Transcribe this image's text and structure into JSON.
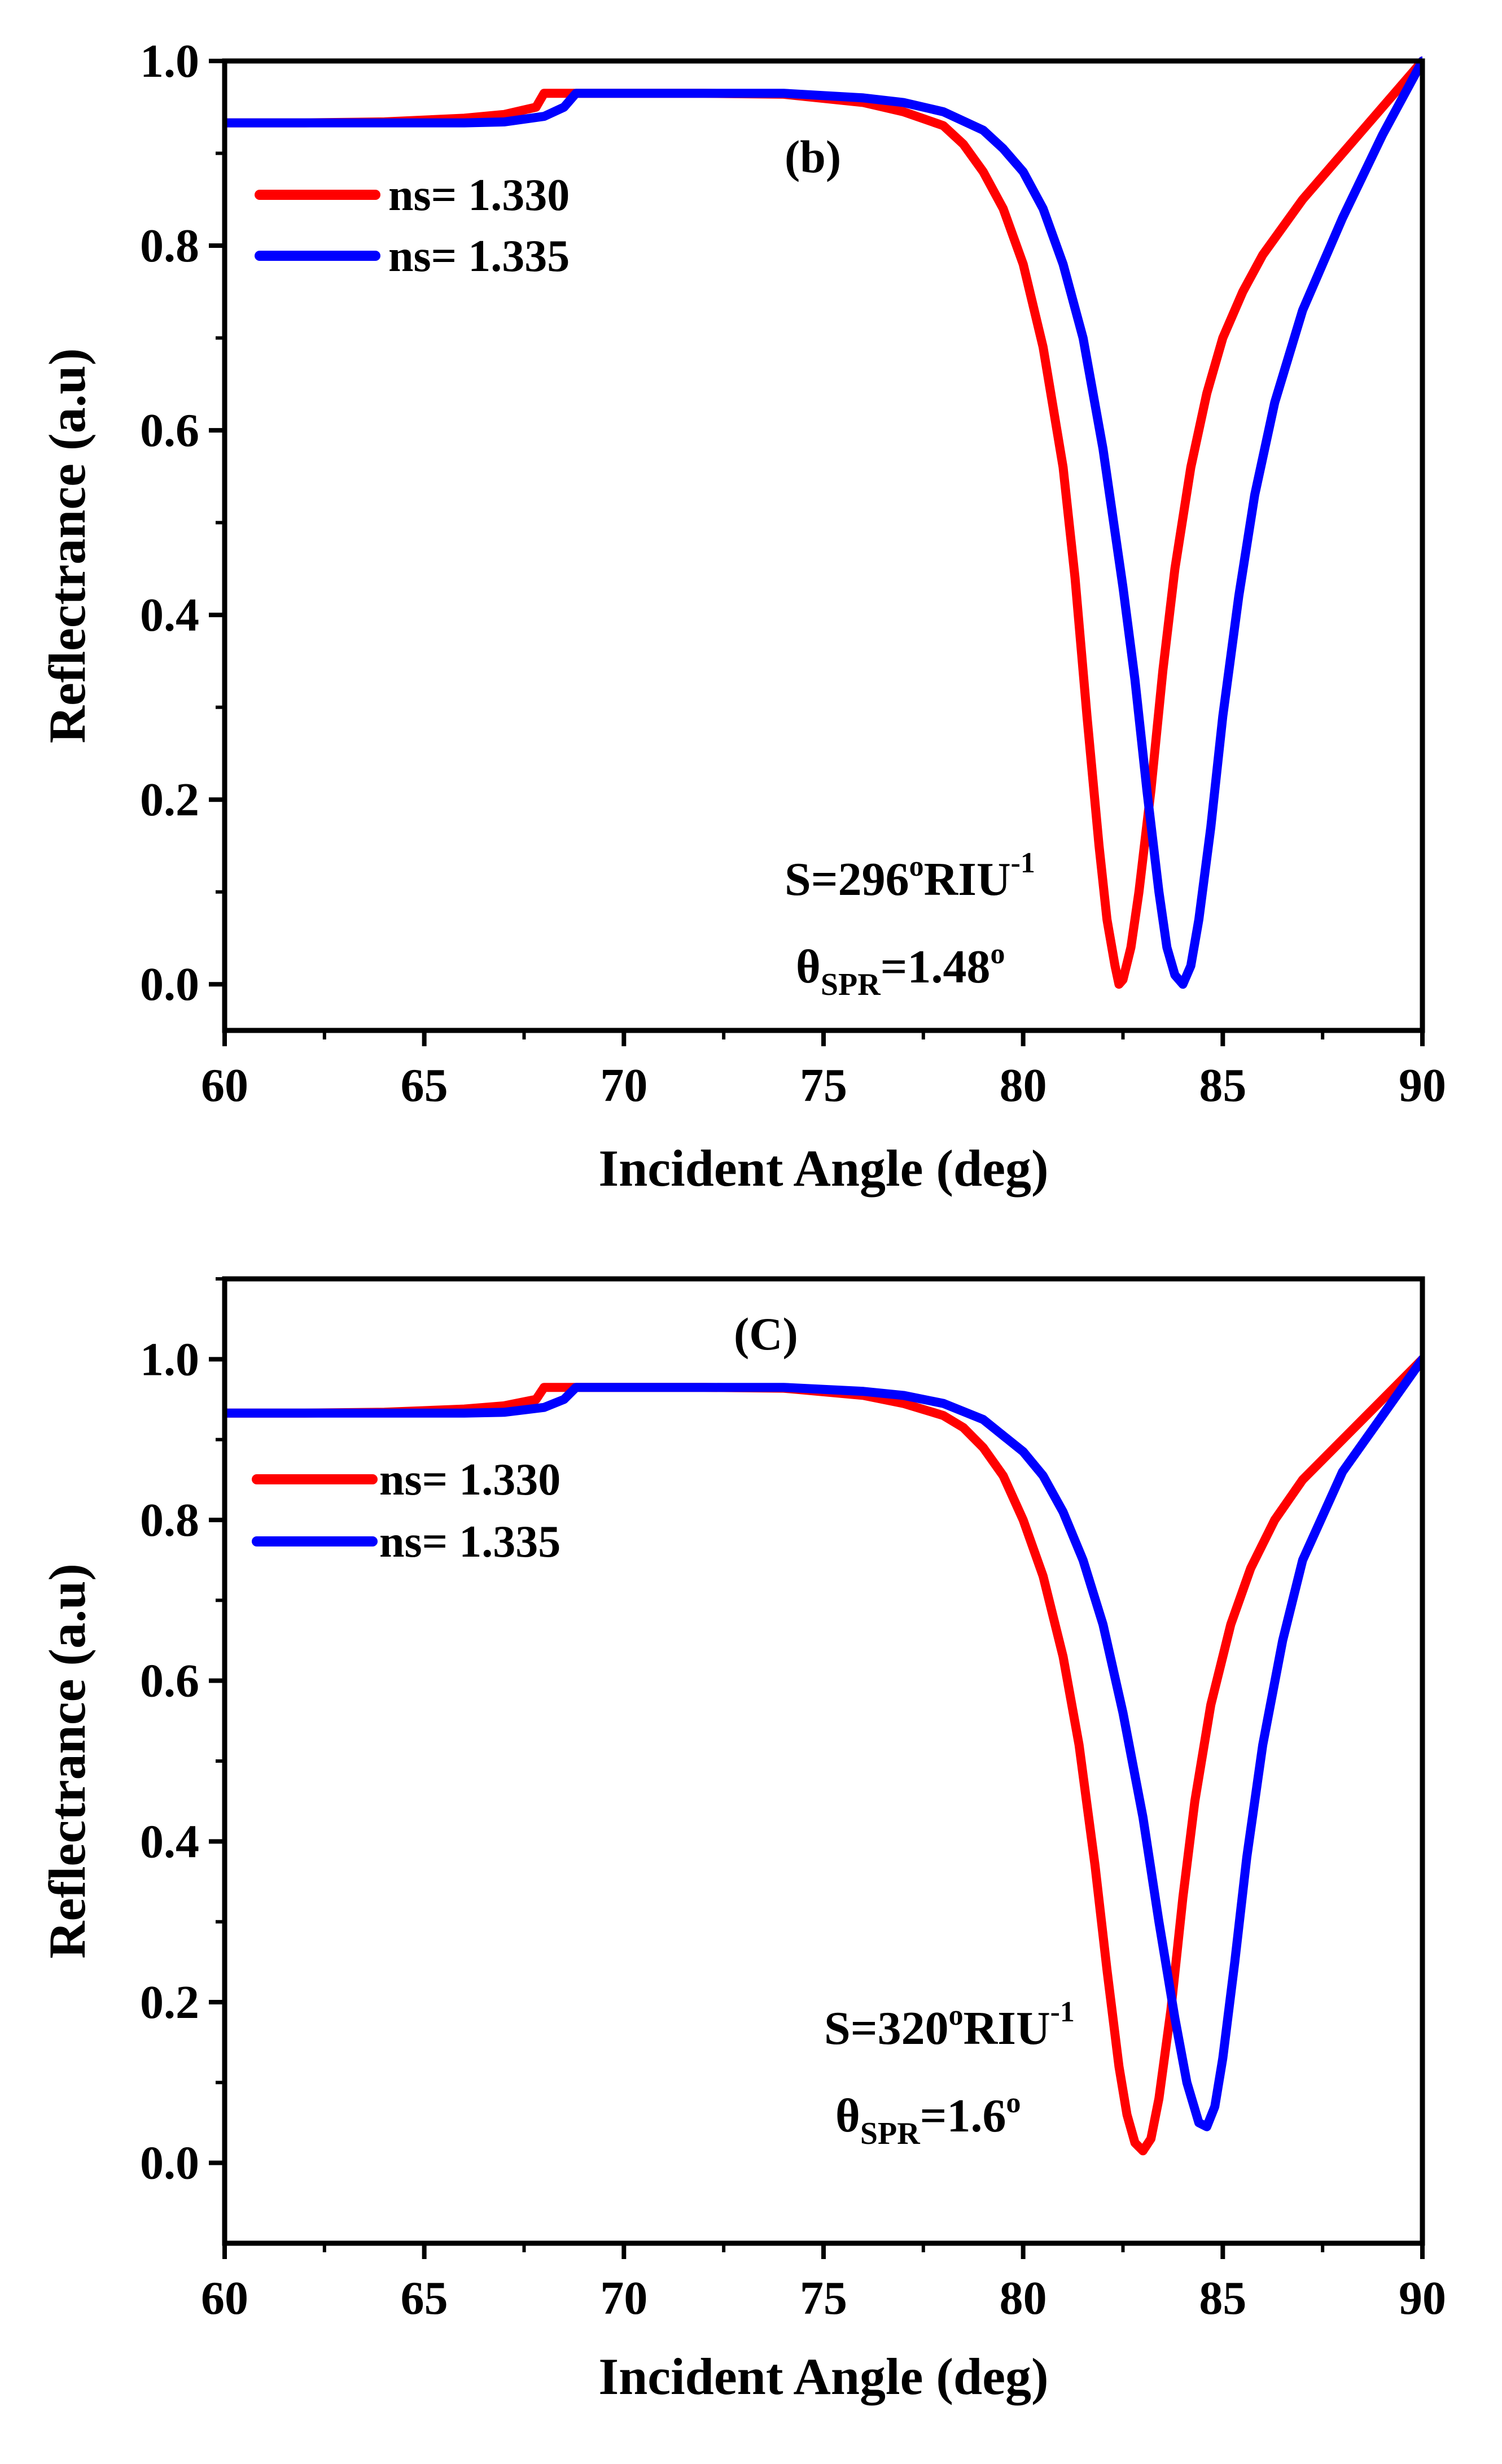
{
  "chart_data": [
    {
      "panel_label": "(b)",
      "type": "line",
      "xlabel": "Incident Angle (deg)",
      "ylabel": "Reflectrance (a.u)",
      "xlim": [
        60,
        90
      ],
      "ylim": [
        -0.05,
        1.0
      ],
      "xticks": [
        "60",
        "65",
        "70",
        "75",
        "80",
        "85",
        "90"
      ],
      "yticks": [
        "0.0",
        "0.2",
        "0.4",
        "0.6",
        "0.8",
        "1.0"
      ],
      "legend_position": "top-left",
      "series": [
        {
          "name": "ns= 1.330",
          "color": "#ff0000",
          "x": [
            60,
            62,
            64,
            66,
            67,
            67.8,
            68.0,
            68.2,
            70,
            72,
            74,
            76,
            77,
            78,
            78.5,
            79,
            79.5,
            80,
            80.5,
            81,
            81.3,
            81.6,
            81.9,
            82.1,
            82.3,
            82.4,
            82.5,
            82.7,
            82.9,
            83.2,
            83.5,
            83.8,
            84.2,
            84.6,
            85,
            85.5,
            86,
            87,
            88,
            89,
            90
          ],
          "y": [
            0.933,
            0.933,
            0.934,
            0.938,
            0.942,
            0.95,
            0.965,
            0.965,
            0.965,
            0.965,
            0.964,
            0.955,
            0.945,
            0.93,
            0.91,
            0.88,
            0.84,
            0.78,
            0.69,
            0.56,
            0.44,
            0.29,
            0.15,
            0.07,
            0.02,
            0.0,
            0.005,
            0.04,
            0.1,
            0.21,
            0.34,
            0.45,
            0.56,
            0.64,
            0.7,
            0.75,
            0.79,
            0.85,
            0.9,
            0.95,
            1.0
          ]
        },
        {
          "name": "ns= 1.335",
          "color": "#0000ff",
          "x": [
            60,
            62,
            64,
            66,
            67,
            68,
            68.5,
            68.8,
            70,
            72,
            74,
            76,
            77,
            78,
            79,
            79.5,
            80,
            80.5,
            81,
            81.5,
            82,
            82.5,
            82.8,
            83.1,
            83.4,
            83.6,
            83.8,
            84.0,
            84.2,
            84.4,
            84.7,
            85,
            85.4,
            85.8,
            86.3,
            87,
            88,
            89,
            90
          ],
          "y": [
            0.933,
            0.933,
            0.933,
            0.933,
            0.934,
            0.94,
            0.95,
            0.965,
            0.965,
            0.965,
            0.965,
            0.96,
            0.955,
            0.945,
            0.925,
            0.905,
            0.88,
            0.84,
            0.78,
            0.7,
            0.58,
            0.43,
            0.33,
            0.21,
            0.1,
            0.04,
            0.01,
            0.0,
            0.02,
            0.07,
            0.17,
            0.29,
            0.42,
            0.53,
            0.63,
            0.73,
            0.83,
            0.92,
            1.0
          ]
        }
      ],
      "annotations": {
        "sensitivity_main": "S=296",
        "sensitivity_deg": "o",
        "sensitivity_unit": "RIU",
        "sensitivity_exp": "-1",
        "theta_symbol": "θ",
        "theta_sub": "SPR",
        "theta_value": "=1.48",
        "theta_deg": "o"
      }
    },
    {
      "panel_label": "(C)",
      "type": "line",
      "xlabel": "Incident Angle (deg)",
      "ylabel": "Reflectrance (a.u)",
      "xlim": [
        60,
        90
      ],
      "ylim": [
        -0.1,
        1.1
      ],
      "xticks": [
        "60",
        "65",
        "70",
        "75",
        "80",
        "85",
        "90"
      ],
      "yticks": [
        "0.0",
        "0.2",
        "0.4",
        "0.6",
        "0.8",
        "1.0"
      ],
      "legend_position": "top-left",
      "series": [
        {
          "name": "ns= 1.330",
          "color": "#ff0000",
          "x": [
            60,
            62,
            64,
            66,
            67,
            67.8,
            68.0,
            68.2,
            70,
            72,
            74,
            76,
            77,
            78,
            78.5,
            79,
            79.5,
            80,
            80.5,
            81,
            81.4,
            81.8,
            82.1,
            82.4,
            82.6,
            82.8,
            83.0,
            83.2,
            83.4,
            83.7,
            84,
            84.3,
            84.7,
            85.2,
            85.7,
            86.3,
            87,
            88,
            89,
            90
          ],
          "y": [
            0.933,
            0.933,
            0.934,
            0.938,
            0.942,
            0.95,
            0.965,
            0.965,
            0.965,
            0.965,
            0.964,
            0.955,
            0.945,
            0.93,
            0.915,
            0.89,
            0.855,
            0.8,
            0.73,
            0.63,
            0.52,
            0.37,
            0.24,
            0.12,
            0.06,
            0.025,
            0.015,
            0.03,
            0.08,
            0.19,
            0.33,
            0.45,
            0.57,
            0.67,
            0.74,
            0.8,
            0.85,
            0.9,
            0.95,
            1.0
          ]
        },
        {
          "name": "ns= 1.335",
          "color": "#0000ff",
          "x": [
            60,
            62,
            64,
            66,
            67,
            68,
            68.5,
            68.8,
            70,
            72,
            74,
            76,
            77,
            78,
            79,
            79.5,
            80,
            80.5,
            81,
            81.5,
            82,
            82.5,
            83,
            83.4,
            83.8,
            84.1,
            84.4,
            84.6,
            84.8,
            85.0,
            85.3,
            85.6,
            86,
            86.5,
            87,
            88,
            89,
            90
          ],
          "y": [
            0.933,
            0.933,
            0.933,
            0.933,
            0.934,
            0.94,
            0.95,
            0.965,
            0.965,
            0.965,
            0.965,
            0.96,
            0.955,
            0.945,
            0.925,
            0.905,
            0.885,
            0.855,
            0.81,
            0.75,
            0.67,
            0.56,
            0.43,
            0.3,
            0.18,
            0.1,
            0.05,
            0.045,
            0.07,
            0.13,
            0.25,
            0.38,
            0.52,
            0.65,
            0.75,
            0.86,
            0.93,
            1.0
          ]
        }
      ],
      "annotations": {
        "sensitivity_main": "S=320",
        "sensitivity_deg": "o",
        "sensitivity_unit": "RIU",
        "sensitivity_exp": "-1",
        "theta_symbol": "θ",
        "theta_sub": "SPR",
        "theta_value": "=1.6",
        "theta_deg": "o"
      }
    }
  ]
}
